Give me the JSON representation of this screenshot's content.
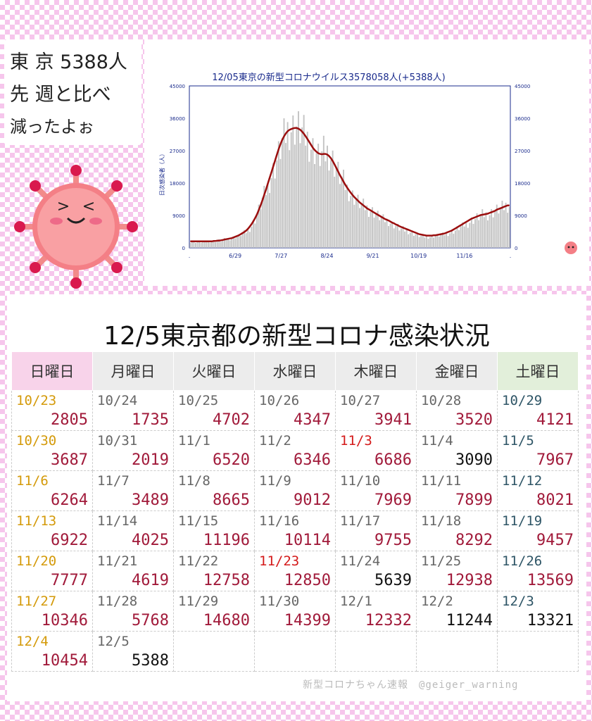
{
  "bubble": {
    "line1": "東 京 5388人",
    "line2": "先 週と比べ",
    "line3": "減ったよぉ"
  },
  "colors": {
    "bar": "#c4c4c4",
    "avg_line": "#9b0f0f",
    "sunday_date": "#d49a0a",
    "holiday_date": "#d41a1a",
    "number": "#a11a3a",
    "black_number": "#111111",
    "saturday_date": "#2e5566"
  },
  "chart_data": {
    "type": "bar",
    "title": "12/05東京の新型コロナウイルス3578058人(+5388人)",
    "ylabel": "日次感染者（人）",
    "ylim": [
      0,
      45000
    ],
    "yticks": [
      0,
      9000,
      18000,
      27000,
      36000,
      45000
    ],
    "x_tick_labels": [
      ".",
      "6/29",
      "7/27",
      "8/24",
      "9/21",
      "10/19",
      "11/16",
      "."
    ],
    "grid": false,
    "series": [
      {
        "values": [
          1700,
          1700,
          1700,
          1600,
          1700,
          1500,
          1600,
          1700,
          1700,
          1700,
          1800,
          1800,
          1700,
          1900,
          1800,
          2000,
          2100,
          1900,
          2200,
          2300,
          2400,
          2400,
          2600,
          2700,
          2800,
          3100,
          3200,
          3300,
          3700,
          3900,
          4200,
          4400,
          4700,
          5400,
          6100,
          7000,
          7900,
          9100,
          10500,
          12000,
          13500,
          14600,
          15800,
          16800,
          18600,
          20100,
          21300,
          22500,
          24300,
          25900,
          27700,
          29400,
          30500,
          31400,
          32600,
          33100,
          33300,
          33200,
          33500,
          33700,
          33200,
          32600,
          32300,
          31300,
          30600,
          30100,
          29200,
          28300,
          27500,
          27200,
          26300,
          25300,
          25500,
          25900,
          26400,
          25900,
          26500,
          26200,
          25300,
          24400,
          23100,
          22100,
          20900,
          19900,
          19100,
          18400,
          17300,
          16400,
          15800,
          15000,
          14400,
          14000,
          13500,
          12900,
          12400,
          11900,
          11600,
          11300,
          11000,
          10500,
          10400,
          10200,
          9800,
          9300,
          9000,
          8600,
          8300,
          7900,
          7700,
          7600,
          7400,
          7000,
          6500,
          6300,
          6100,
          5800,
          5400,
          5200,
          5100,
          4900,
          4800,
          4600,
          4400,
          4100,
          3900,
          3800,
          3600,
          3400,
          3200,
          3200,
          3100,
          3000,
          3100,
          3100,
          3200,
          3300,
          3400,
          3300,
          3500,
          3500,
          3600,
          3800,
          3900,
          4000,
          4200,
          4300,
          4600,
          4800,
          5200,
          5500,
          5800,
          6000,
          6400,
          6600,
          6800,
          7200,
          7600,
          7800,
          8000,
          8400,
          8600,
          8800,
          9100,
          9200,
          9200,
          9300,
          9400,
          9700,
          9900,
          10200,
          10500,
          10700,
          10800,
          11100,
          11300,
          11700,
          11900,
          11800
        ],
        "note": "daily new cases (bars, approx.)"
      },
      {
        "values": [
          1800,
          1800,
          1800,
          1800,
          1800,
          1800,
          1800,
          1800,
          1800,
          1800,
          1800,
          1800,
          1800,
          1900,
          1900,
          2000,
          2000,
          2100,
          2200,
          2300,
          2400,
          2500,
          2600,
          2700,
          2900,
          3100,
          3300,
          3500,
          3800,
          4100,
          4400,
          4800,
          5300,
          5900,
          6600,
          7400,
          8300,
          9300,
          10500,
          11800,
          13200,
          14700,
          16200,
          17800,
          19400,
          21000,
          22600,
          24200,
          25800,
          27400,
          28800,
          30000,
          31000,
          31800,
          32400,
          32800,
          33000,
          33200,
          33300,
          33300,
          33100,
          32800,
          32300,
          31700,
          31000,
          30200,
          29400,
          28600,
          27800,
          27200,
          26700,
          26300,
          26100,
          26000,
          26100,
          26100,
          25900,
          25500,
          24900,
          24100,
          23200,
          22200,
          21200,
          20200,
          19300,
          18400,
          17500,
          16700,
          16000,
          15300,
          14700,
          14100,
          13600,
          13100,
          12600,
          12200,
          11800,
          11400,
          11000,
          10700,
          10400,
          10100,
          9800,
          9500,
          9200,
          8900,
          8600,
          8300,
          8000,
          7800,
          7600,
          7300,
          7000,
          6800,
          6500,
          6300,
          6000,
          5800,
          5600,
          5400,
          5200,
          5000,
          4800,
          4600,
          4400,
          4200,
          4000,
          3800,
          3700,
          3600,
          3500,
          3400,
          3400,
          3400,
          3400,
          3500,
          3500,
          3600,
          3700,
          3800,
          3900,
          4000,
          4200,
          4400,
          4600,
          4800,
          5100,
          5400,
          5700,
          6000,
          6300,
          6600,
          6900,
          7200,
          7500,
          7800,
          8100,
          8300,
          8500,
          8700,
          8900,
          9100,
          9200,
          9300,
          9400,
          9500,
          9700,
          9900,
          10100,
          10300,
          10600,
          10800,
          11000,
          11200,
          11400,
          11600,
          11800,
          11800
        ],
        "note": "7-day average (line, approx.)"
      }
    ]
  },
  "table": {
    "title": "12/5東京都の新型コロナ感染状況",
    "headers": [
      "日曜日",
      "月曜日",
      "火曜日",
      "水曜日",
      "木曜日",
      "金曜日",
      "土曜日"
    ],
    "rows": [
      [
        {
          "date": "10/23",
          "count": "2805",
          "dc": "sun"
        },
        {
          "date": "10/24",
          "count": "1735"
        },
        {
          "date": "10/25",
          "count": "4702"
        },
        {
          "date": "10/26",
          "count": "4347"
        },
        {
          "date": "10/27",
          "count": "3941"
        },
        {
          "date": "10/28",
          "count": "3520"
        },
        {
          "date": "10/29",
          "count": "4121",
          "dc": "sat"
        }
      ],
      [
        {
          "date": "10/30",
          "count": "3687",
          "dc": "sun"
        },
        {
          "date": "10/31",
          "count": "2019"
        },
        {
          "date": "11/1",
          "count": "6520"
        },
        {
          "date": "11/2",
          "count": "6346"
        },
        {
          "date": "11/3",
          "count": "6686",
          "dc": "hol"
        },
        {
          "date": "11/4",
          "count": "3090",
          "nc": "black"
        },
        {
          "date": "11/5",
          "count": "7967",
          "dc": "sat"
        }
      ],
      [
        {
          "date": "11/6",
          "count": "6264",
          "dc": "sun"
        },
        {
          "date": "11/7",
          "count": "3489"
        },
        {
          "date": "11/8",
          "count": "8665"
        },
        {
          "date": "11/9",
          "count": "9012"
        },
        {
          "date": "11/10",
          "count": "7969"
        },
        {
          "date": "11/11",
          "count": "7899"
        },
        {
          "date": "11/12",
          "count": "8021",
          "dc": "sat"
        }
      ],
      [
        {
          "date": "11/13",
          "count": "6922",
          "dc": "sun"
        },
        {
          "date": "11/14",
          "count": "4025"
        },
        {
          "date": "11/15",
          "count": "11196"
        },
        {
          "date": "11/16",
          "count": "10114"
        },
        {
          "date": "11/17",
          "count": "9755"
        },
        {
          "date": "11/18",
          "count": "8292"
        },
        {
          "date": "11/19",
          "count": "9457",
          "dc": "sat"
        }
      ],
      [
        {
          "date": "11/20",
          "count": "7777",
          "dc": "sun"
        },
        {
          "date": "11/21",
          "count": "4619"
        },
        {
          "date": "11/22",
          "count": "12758"
        },
        {
          "date": "11/23",
          "count": "12850",
          "dc": "hol"
        },
        {
          "date": "11/24",
          "count": "5639",
          "nc": "black"
        },
        {
          "date": "11/25",
          "count": "12938"
        },
        {
          "date": "11/26",
          "count": "13569",
          "dc": "sat"
        }
      ],
      [
        {
          "date": "11/27",
          "count": "10346",
          "dc": "sun"
        },
        {
          "date": "11/28",
          "count": "5768"
        },
        {
          "date": "11/29",
          "count": "14680"
        },
        {
          "date": "11/30",
          "count": "14399"
        },
        {
          "date": "12/1",
          "count": "12332"
        },
        {
          "date": "12/2",
          "count": "11244",
          "nc": "black"
        },
        {
          "date": "12/3",
          "count": "13321",
          "dc": "sat",
          "nc": "black"
        }
      ],
      [
        {
          "date": "12/4",
          "count": "10454",
          "dc": "sun"
        },
        {
          "date": "12/5",
          "count": "5388",
          "nc": "black"
        },
        {
          "date": "",
          "count": ""
        },
        {
          "date": "",
          "count": ""
        },
        {
          "date": "",
          "count": ""
        },
        {
          "date": "",
          "count": ""
        },
        {
          "date": "",
          "count": ""
        }
      ]
    ]
  },
  "credit": "新型コロナちゃん速報　@geiger_warning"
}
